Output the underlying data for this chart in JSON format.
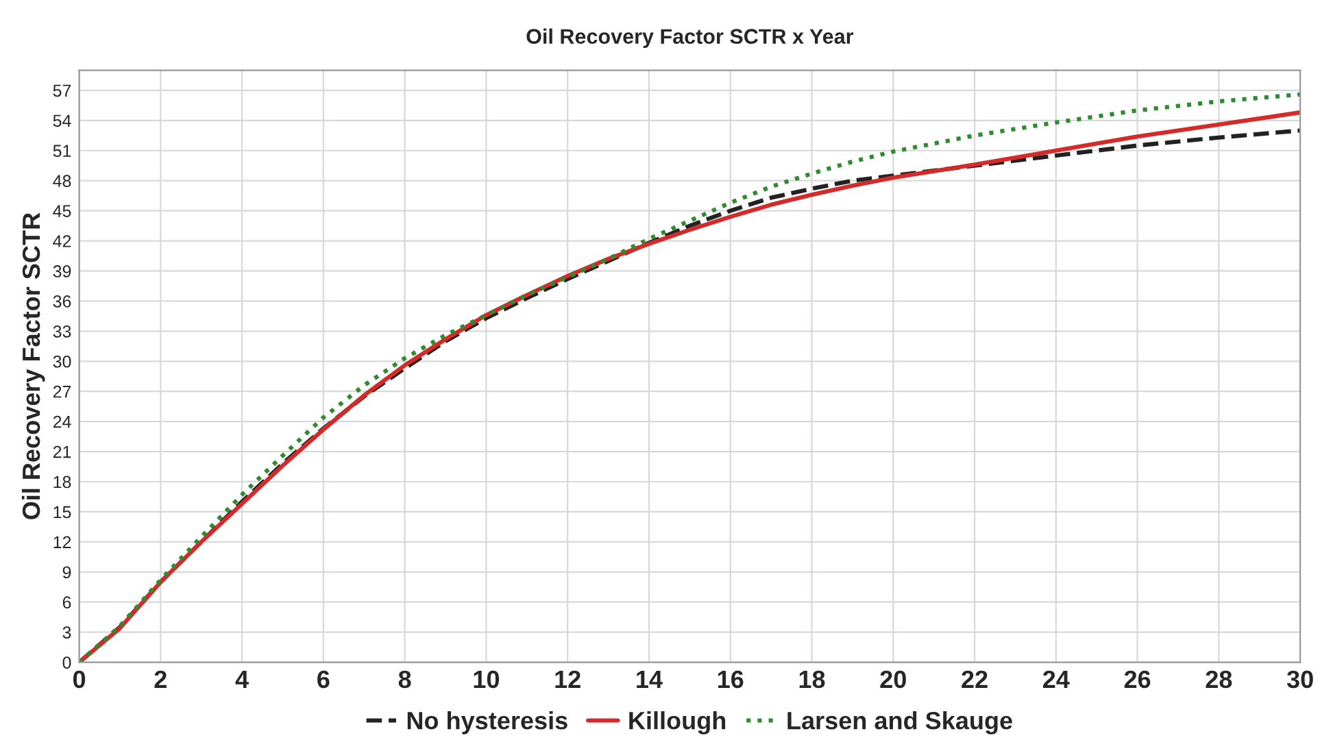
{
  "chart_data": {
    "type": "line",
    "title": "Oil Recovery Factor SCTR x Year",
    "ylabel": "Oil Recovery Factor SCTR",
    "x": [
      0,
      1,
      2,
      3,
      4,
      5,
      6,
      7,
      8,
      9,
      10,
      11,
      12,
      13,
      14,
      15,
      16,
      17,
      18,
      19,
      20,
      22,
      24,
      26,
      28,
      30
    ],
    "series": [
      {
        "name": "No hysteresis",
        "color": "#222222",
        "line_style": "dashed",
        "values": [
          0,
          3.5,
          8,
          12,
          16,
          19.8,
          23.3,
          26.5,
          29.3,
          32,
          34.3,
          36.3,
          38.2,
          40,
          41.8,
          43.5,
          45,
          46.3,
          47.2,
          48,
          48.5,
          49.5,
          50.5,
          51.5,
          52.3,
          53
        ]
      },
      {
        "name": "Killough",
        "color": "#d42a2a",
        "line_style": "solid",
        "values": [
          0,
          3.4,
          8,
          12,
          15.8,
          19.6,
          23.2,
          26.6,
          29.6,
          32.2,
          34.6,
          36.6,
          38.5,
          40.2,
          41.7,
          43.1,
          44.4,
          45.6,
          46.6,
          47.5,
          48.3,
          49.6,
          51,
          52.4,
          53.6,
          54.8
        ]
      },
      {
        "name": "Larsen and Skauge",
        "color": "#2e8b2e",
        "line_style": "dotted",
        "values": [
          0,
          3.6,
          8.2,
          12.5,
          16.7,
          20.6,
          24.4,
          27.6,
          30.3,
          32.6,
          34.6,
          36.6,
          38.4,
          40.2,
          42.2,
          44,
          45.8,
          47.4,
          48.7,
          49.9,
          50.9,
          52.5,
          53.8,
          55,
          55.9,
          56.6
        ]
      }
    ],
    "xlim": [
      0,
      30
    ],
    "ylim": [
      0,
      59
    ],
    "xticks": [
      0,
      2,
      4,
      6,
      8,
      10,
      12,
      14,
      16,
      18,
      20,
      22,
      24,
      26,
      28,
      30
    ],
    "yticks": [
      0,
      3,
      6,
      9,
      12,
      15,
      18,
      21,
      24,
      27,
      30,
      33,
      36,
      39,
      42,
      45,
      48,
      51,
      54,
      57
    ],
    "grid": true,
    "legend": "bottom",
    "marker": "none"
  }
}
